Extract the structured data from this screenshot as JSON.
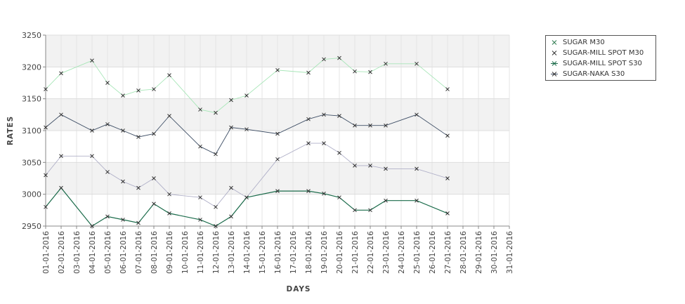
{
  "chart_data": {
    "type": "line",
    "xlabel": "DAYS",
    "ylabel": "RATES",
    "ylim": [
      2950,
      3250
    ],
    "yticks": [
      2950,
      3000,
      3050,
      3100,
      3150,
      3200,
      3250
    ],
    "categories": [
      "01-01-2016",
      "02-01-2016",
      "03-01-2016",
      "04-01-2016",
      "05-01-2016",
      "06-01-2016",
      "07-01-2016",
      "08-01-2016",
      "09-01-2016",
      "10-01-2016",
      "11-01-2016",
      "12-01-2016",
      "13-01-2016",
      "14-01-2016",
      "15-01-2016",
      "16-01-2016",
      "17-01-2016",
      "18-01-2016",
      "19-01-2016",
      "20-01-2016",
      "21-01-2016",
      "22-01-2016",
      "23-01-2016",
      "24-01-2016",
      "25-01-2016",
      "26-01-2016",
      "27-01-2016",
      "28-01-2016",
      "29-01-2016",
      "30-01-2016",
      "31-01-2016"
    ],
    "legend_position": "top-right",
    "grid": "horizontal-bands",
    "series": [
      {
        "name": "SUGAR M30",
        "color": "#a8e6b8",
        "points": [
          [
            1,
            3165
          ],
          [
            2,
            3190
          ],
          [
            4,
            3210
          ],
          [
            5,
            3175
          ],
          [
            6,
            3155
          ],
          [
            7,
            3163
          ],
          [
            8,
            3165
          ],
          [
            9,
            3187
          ],
          [
            11,
            3133
          ],
          [
            12,
            3128
          ],
          [
            13,
            3148
          ],
          [
            14,
            3155
          ],
          [
            16,
            3195
          ],
          [
            18,
            3191
          ],
          [
            19,
            3212
          ],
          [
            20,
            3214
          ],
          [
            21,
            3193
          ],
          [
            22,
            3192
          ],
          [
            23,
            3205
          ],
          [
            25,
            3205
          ],
          [
            27,
            3165
          ]
        ]
      },
      {
        "name": "SUGAR-MILL SPOT M30",
        "color": "#b0b0c8",
        "points": [
          [
            1,
            3030
          ],
          [
            2,
            3060
          ],
          [
            4,
            3060
          ],
          [
            5,
            3035
          ],
          [
            6,
            3020
          ],
          [
            7,
            3010
          ],
          [
            8,
            3025
          ],
          [
            9,
            3000
          ],
          [
            11,
            2995
          ],
          [
            12,
            2980
          ],
          [
            13,
            3010
          ],
          [
            14,
            2995
          ],
          [
            16,
            3055
          ],
          [
            18,
            3080
          ],
          [
            19,
            3080
          ],
          [
            20,
            3065
          ],
          [
            21,
            3045
          ],
          [
            22,
            3045
          ],
          [
            23,
            3040
          ],
          [
            25,
            3040
          ],
          [
            27,
            3025
          ]
        ]
      },
      {
        "name": "SUGAR-MILL SPOT S30",
        "color": "#1a6b4a",
        "points": [
          [
            1,
            2980
          ],
          [
            2,
            3010
          ],
          [
            4,
            2950
          ],
          [
            5,
            2965
          ],
          [
            6,
            2960
          ],
          [
            7,
            2955
          ],
          [
            8,
            2985
          ],
          [
            9,
            2970
          ],
          [
            11,
            2960
          ],
          [
            12,
            2950
          ],
          [
            13,
            2965
          ],
          [
            14,
            2995
          ],
          [
            16,
            3005
          ],
          [
            18,
            3005
          ],
          [
            19,
            3001
          ],
          [
            20,
            2995
          ],
          [
            21,
            2975
          ],
          [
            22,
            2975
          ],
          [
            23,
            2990
          ],
          [
            25,
            2990
          ],
          [
            27,
            2970
          ]
        ]
      },
      {
        "name": "SUGAR-NAKA S30",
        "color": "#3f4f66",
        "points": [
          [
            1,
            3105
          ],
          [
            2,
            3125
          ],
          [
            4,
            3100
          ],
          [
            5,
            3110
          ],
          [
            6,
            3100
          ],
          [
            7,
            3090
          ],
          [
            8,
            3095
          ],
          [
            9,
            3123
          ],
          [
            11,
            3075
          ],
          [
            12,
            3063
          ],
          [
            13,
            3105
          ],
          [
            14,
            3102
          ],
          [
            16,
            3095
          ],
          [
            18,
            3118
          ],
          [
            19,
            3125
          ],
          [
            20,
            3123
          ],
          [
            21,
            3108
          ],
          [
            22,
            3108
          ],
          [
            23,
            3108
          ],
          [
            25,
            3125
          ],
          [
            27,
            3092
          ]
        ]
      }
    ]
  }
}
